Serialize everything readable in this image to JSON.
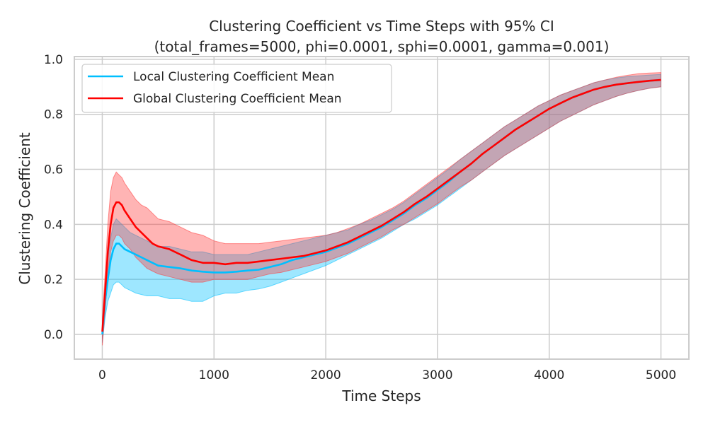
{
  "chart_data": {
    "type": "line",
    "title": "Clustering Coefficient vs Time Steps with 95% CI",
    "subtitle": "(total_frames=5000, phi=0.0001, sphi=0.0001, gamma=0.001)",
    "xlabel": "Time Steps",
    "ylabel": "Clustering Coefficient",
    "xlim": [
      -250,
      5250
    ],
    "ylim": [
      -0.09,
      1.01
    ],
    "xticks": [
      0,
      1000,
      2000,
      3000,
      4000,
      5000
    ],
    "xtick_labels": [
      "0",
      "1000",
      "2000",
      "3000",
      "4000",
      "5000"
    ],
    "yticks": [
      0.0,
      0.2,
      0.4,
      0.6,
      0.8,
      1.0
    ],
    "ytick_labels": [
      "0.0",
      "0.2",
      "0.4",
      "0.6",
      "0.8",
      "1.0"
    ],
    "grid": true,
    "legend_position": "top-left",
    "series": [
      {
        "name": "Local Clustering Coefficient Mean",
        "color": "#00bfff",
        "band_color": "#00bfff",
        "x": [
          0,
          25,
          50,
          75,
          100,
          125,
          150,
          175,
          200,
          250,
          300,
          350,
          400,
          450,
          500,
          600,
          700,
          800,
          900,
          1000,
          1100,
          1200,
          1300,
          1400,
          1500,
          1600,
          1700,
          1800,
          1900,
          2000,
          2100,
          2200,
          2300,
          2400,
          2500,
          2600,
          2700,
          2800,
          2900,
          3000,
          3100,
          3200,
          3300,
          3400,
          3500,
          3600,
          3700,
          3800,
          3900,
          4000,
          4100,
          4200,
          4300,
          4400,
          4500,
          4600,
          4700,
          4800,
          4900,
          5000
        ],
        "y": [
          0.0,
          0.12,
          0.2,
          0.27,
          0.31,
          0.33,
          0.33,
          0.32,
          0.31,
          0.3,
          0.29,
          0.28,
          0.27,
          0.26,
          0.25,
          0.245,
          0.24,
          0.232,
          0.228,
          0.225,
          0.225,
          0.228,
          0.232,
          0.235,
          0.245,
          0.255,
          0.27,
          0.28,
          0.29,
          0.3,
          0.315,
          0.33,
          0.35,
          0.37,
          0.39,
          0.415,
          0.44,
          0.47,
          0.495,
          0.525,
          0.555,
          0.59,
          0.62,
          0.655,
          0.685,
          0.715,
          0.745,
          0.77,
          0.795,
          0.82,
          0.84,
          0.86,
          0.875,
          0.89,
          0.9,
          0.908,
          0.913,
          0.918,
          0.922,
          0.925
        ],
        "lower": [
          -0.03,
          0.06,
          0.12,
          0.15,
          0.18,
          0.19,
          0.19,
          0.18,
          0.17,
          0.16,
          0.15,
          0.145,
          0.14,
          0.14,
          0.14,
          0.13,
          0.13,
          0.12,
          0.12,
          0.14,
          0.15,
          0.15,
          0.16,
          0.165,
          0.175,
          0.19,
          0.205,
          0.22,
          0.235,
          0.25,
          0.27,
          0.29,
          0.31,
          0.33,
          0.35,
          0.375,
          0.4,
          0.42,
          0.445,
          0.47,
          0.5,
          0.53,
          0.56,
          0.59,
          0.62,
          0.65,
          0.675,
          0.7,
          0.725,
          0.75,
          0.775,
          0.795,
          0.815,
          0.835,
          0.85,
          0.865,
          0.877,
          0.887,
          0.895,
          0.9
        ],
        "upper": [
          0.05,
          0.18,
          0.27,
          0.35,
          0.4,
          0.42,
          0.41,
          0.4,
          0.39,
          0.37,
          0.36,
          0.35,
          0.34,
          0.33,
          0.32,
          0.32,
          0.31,
          0.3,
          0.3,
          0.29,
          0.29,
          0.29,
          0.29,
          0.3,
          0.31,
          0.32,
          0.33,
          0.34,
          0.35,
          0.36,
          0.37,
          0.38,
          0.4,
          0.415,
          0.435,
          0.455,
          0.48,
          0.51,
          0.54,
          0.57,
          0.6,
          0.635,
          0.665,
          0.695,
          0.725,
          0.755,
          0.78,
          0.805,
          0.83,
          0.85,
          0.87,
          0.885,
          0.9,
          0.915,
          0.925,
          0.932,
          0.937,
          0.94,
          0.943,
          0.945
        ]
      },
      {
        "name": "Global Clustering Coefficient Mean",
        "color": "#ff0000",
        "band_color": "#ff3b3b",
        "x": [
          0,
          25,
          50,
          75,
          100,
          125,
          150,
          175,
          200,
          250,
          300,
          350,
          400,
          450,
          500,
          600,
          700,
          800,
          900,
          1000,
          1100,
          1200,
          1300,
          1400,
          1500,
          1600,
          1700,
          1800,
          1900,
          2000,
          2100,
          2200,
          2300,
          2400,
          2500,
          2600,
          2700,
          2800,
          2900,
          3000,
          3100,
          3200,
          3300,
          3400,
          3500,
          3600,
          3700,
          3800,
          3900,
          4000,
          4100,
          4200,
          4300,
          4400,
          4500,
          4600,
          4700,
          4800,
          4900,
          5000
        ],
        "y": [
          0.01,
          0.15,
          0.3,
          0.4,
          0.46,
          0.48,
          0.48,
          0.47,
          0.45,
          0.42,
          0.39,
          0.37,
          0.35,
          0.33,
          0.32,
          0.31,
          0.29,
          0.27,
          0.26,
          0.26,
          0.255,
          0.26,
          0.26,
          0.265,
          0.27,
          0.275,
          0.28,
          0.285,
          0.295,
          0.305,
          0.32,
          0.335,
          0.355,
          0.375,
          0.395,
          0.42,
          0.445,
          0.475,
          0.5,
          0.53,
          0.56,
          0.59,
          0.62,
          0.655,
          0.685,
          0.715,
          0.745,
          0.77,
          0.795,
          0.82,
          0.84,
          0.86,
          0.875,
          0.89,
          0.9,
          0.908,
          0.913,
          0.918,
          0.922,
          0.925
        ],
        "lower": [
          -0.04,
          0.08,
          0.22,
          0.3,
          0.34,
          0.36,
          0.36,
          0.35,
          0.33,
          0.31,
          0.28,
          0.26,
          0.24,
          0.23,
          0.22,
          0.21,
          0.2,
          0.19,
          0.19,
          0.2,
          0.2,
          0.2,
          0.2,
          0.21,
          0.22,
          0.225,
          0.235,
          0.245,
          0.255,
          0.265,
          0.28,
          0.295,
          0.315,
          0.335,
          0.355,
          0.38,
          0.4,
          0.425,
          0.45,
          0.475,
          0.505,
          0.535,
          0.56,
          0.59,
          0.62,
          0.65,
          0.675,
          0.7,
          0.725,
          0.75,
          0.775,
          0.795,
          0.815,
          0.835,
          0.85,
          0.865,
          0.877,
          0.887,
          0.895,
          0.9
        ],
        "upper": [
          0.06,
          0.22,
          0.4,
          0.52,
          0.57,
          0.59,
          0.58,
          0.57,
          0.55,
          0.52,
          0.49,
          0.47,
          0.46,
          0.44,
          0.42,
          0.41,
          0.39,
          0.37,
          0.36,
          0.34,
          0.33,
          0.33,
          0.33,
          0.33,
          0.335,
          0.34,
          0.345,
          0.35,
          0.355,
          0.36,
          0.37,
          0.385,
          0.4,
          0.42,
          0.44,
          0.46,
          0.485,
          0.515,
          0.545,
          0.575,
          0.605,
          0.635,
          0.665,
          0.695,
          0.725,
          0.755,
          0.78,
          0.805,
          0.83,
          0.85,
          0.87,
          0.885,
          0.9,
          0.915,
          0.925,
          0.935,
          0.942,
          0.948,
          0.95,
          0.952
        ]
      }
    ]
  }
}
